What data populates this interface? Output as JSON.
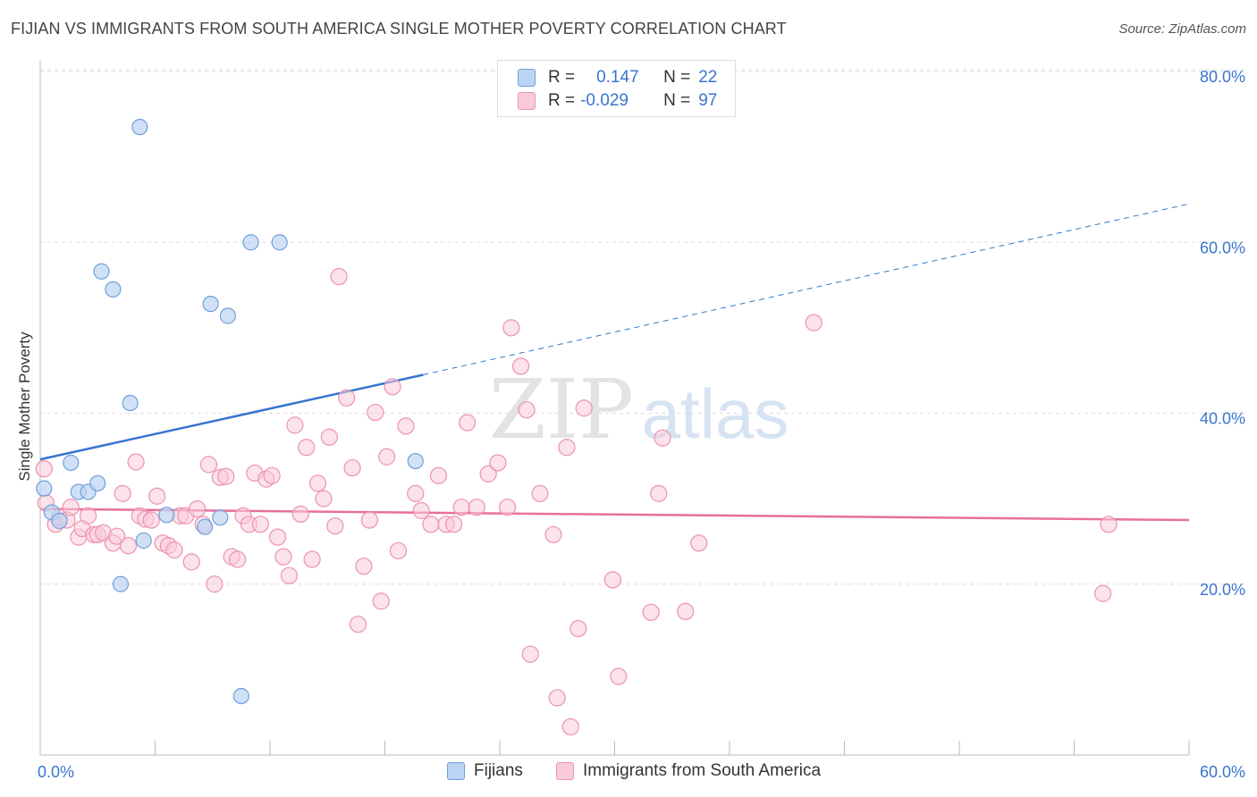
{
  "header": {
    "title": "FIJIAN VS IMMIGRANTS FROM SOUTH AMERICA SINGLE MOTHER POVERTY CORRELATION CHART",
    "source": "Source: ZipAtlas.com"
  },
  "legend_top": {
    "rows": [
      {
        "r_label": "R =",
        "r_value": "0.147",
        "n_label": "N =",
        "n_value": "22"
      },
      {
        "r_label": "R =",
        "r_value": "-0.029",
        "n_label": "N =",
        "n_value": "97"
      }
    ]
  },
  "watermark": {
    "part1": "ZIP",
    "part2": "atlas"
  },
  "colors": {
    "fijian_fill": "#bcd4f4",
    "fijian_stroke": "#6f9fd8",
    "fijian_line": "#3574d0",
    "sa_fill": "#f9cad8",
    "sa_stroke": "#eb93ae",
    "sa_line": "#e8709a",
    "grid": "#dddddd",
    "axis_text": "#3b74d0"
  },
  "chart_data": {
    "type": "scatter",
    "title": "FIJIAN VS IMMIGRANTS FROM SOUTH AMERICA SINGLE MOTHER POVERTY CORRELATION CHART",
    "xlabel": "",
    "ylabel": "Single Mother Poverty",
    "xlim": [
      0,
      60
    ],
    "ylim": [
      0,
      80
    ],
    "x_tick_labels": [
      "0.0%",
      "60.0%"
    ],
    "y_ticks": [
      20,
      40,
      60,
      80
    ],
    "y_tick_labels": [
      "20.0%",
      "40.0%",
      "60.0%",
      "80.0%"
    ],
    "grid": true,
    "series": [
      {
        "name": "Fijians",
        "r": 0.147,
        "n": 22,
        "trend": {
          "x0": 0,
          "y0": 34.6,
          "x1": 20,
          "y1": 44.5,
          "dashed_to_x": 60,
          "dashed_to_y": 64.5
        },
        "points": [
          [
            0.2,
            31.2
          ],
          [
            0.6,
            28.4
          ],
          [
            1.0,
            27.4
          ],
          [
            1.6,
            34.2
          ],
          [
            2.0,
            30.8
          ],
          [
            2.5,
            30.8
          ],
          [
            3.0,
            31.8
          ],
          [
            3.2,
            56.6
          ],
          [
            3.8,
            54.5
          ],
          [
            4.2,
            20.0
          ],
          [
            4.7,
            41.2
          ],
          [
            5.2,
            73.5
          ],
          [
            5.4,
            25.1
          ],
          [
            6.6,
            28.1
          ],
          [
            8.6,
            26.7
          ],
          [
            8.9,
            52.8
          ],
          [
            9.4,
            27.8
          ],
          [
            9.8,
            51.4
          ],
          [
            10.5,
            6.9
          ],
          [
            11.0,
            60.0
          ],
          [
            12.5,
            60.0
          ],
          [
            19.6,
            34.4
          ]
        ]
      },
      {
        "name": "Immigrants from South America",
        "r": -0.029,
        "n": 97,
        "trend": {
          "x0": 0,
          "y0": 28.8,
          "x1": 60,
          "y1": 27.5
        },
        "points": [
          [
            0.2,
            33.5
          ],
          [
            0.3,
            29.5
          ],
          [
            0.8,
            27.0
          ],
          [
            1.0,
            27.8
          ],
          [
            1.4,
            27.5
          ],
          [
            1.6,
            29.0
          ],
          [
            2.0,
            25.5
          ],
          [
            2.2,
            26.5
          ],
          [
            2.5,
            28.0
          ],
          [
            2.8,
            25.8
          ],
          [
            3.0,
            25.8
          ],
          [
            3.3,
            26.0
          ],
          [
            3.8,
            24.8
          ],
          [
            4.0,
            25.6
          ],
          [
            4.3,
            30.6
          ],
          [
            4.6,
            24.5
          ],
          [
            5.0,
            34.3
          ],
          [
            5.2,
            28.0
          ],
          [
            5.5,
            27.6
          ],
          [
            5.8,
            27.5
          ],
          [
            6.1,
            30.3
          ],
          [
            6.4,
            24.8
          ],
          [
            6.7,
            24.5
          ],
          [
            7.0,
            24.0
          ],
          [
            7.3,
            28.0
          ],
          [
            7.6,
            28.0
          ],
          [
            7.9,
            22.6
          ],
          [
            8.2,
            28.8
          ],
          [
            8.5,
            27.0
          ],
          [
            8.8,
            34.0
          ],
          [
            9.1,
            20.0
          ],
          [
            9.4,
            32.5
          ],
          [
            9.7,
            32.6
          ],
          [
            10.0,
            23.2
          ],
          [
            10.3,
            22.9
          ],
          [
            10.6,
            28.0
          ],
          [
            10.9,
            27.0
          ],
          [
            11.2,
            33.0
          ],
          [
            11.5,
            27.0
          ],
          [
            11.8,
            32.3
          ],
          [
            12.1,
            32.7
          ],
          [
            12.4,
            25.5
          ],
          [
            12.7,
            23.2
          ],
          [
            13.0,
            21.0
          ],
          [
            13.3,
            38.6
          ],
          [
            13.6,
            28.2
          ],
          [
            13.9,
            36.0
          ],
          [
            14.2,
            22.9
          ],
          [
            14.5,
            31.8
          ],
          [
            14.8,
            30.0
          ],
          [
            15.1,
            37.2
          ],
          [
            15.4,
            26.8
          ],
          [
            16.0,
            41.8
          ],
          [
            16.3,
            33.6
          ],
          [
            16.6,
            15.3
          ],
          [
            16.9,
            22.1
          ],
          [
            17.2,
            27.5
          ],
          [
            17.5,
            40.1
          ],
          [
            17.8,
            18.0
          ],
          [
            18.1,
            34.9
          ],
          [
            18.4,
            43.1
          ],
          [
            18.7,
            23.9
          ],
          [
            19.1,
            38.5
          ],
          [
            19.6,
            30.6
          ],
          [
            19.9,
            28.6
          ],
          [
            20.4,
            27.0
          ],
          [
            20.8,
            32.7
          ],
          [
            21.2,
            27.0
          ],
          [
            21.6,
            27.0
          ],
          [
            22.0,
            29.0
          ],
          [
            22.3,
            38.9
          ],
          [
            22.8,
            29.0
          ],
          [
            23.4,
            32.9
          ],
          [
            23.9,
            34.2
          ],
          [
            24.4,
            29.0
          ],
          [
            24.6,
            50.0
          ],
          [
            25.1,
            45.5
          ],
          [
            25.4,
            40.4
          ],
          [
            25.6,
            11.8
          ],
          [
            26.1,
            30.6
          ],
          [
            26.8,
            25.8
          ],
          [
            27.0,
            6.7
          ],
          [
            27.5,
            36.0
          ],
          [
            27.7,
            3.3
          ],
          [
            28.1,
            14.8
          ],
          [
            28.4,
            40.6
          ],
          [
            29.9,
            20.5
          ],
          [
            30.2,
            9.2
          ],
          [
            31.9,
            16.7
          ],
          [
            32.3,
            30.6
          ],
          [
            32.5,
            37.1
          ],
          [
            33.7,
            16.8
          ],
          [
            34.4,
            24.8
          ],
          [
            15.6,
            56.0
          ],
          [
            40.4,
            50.6
          ],
          [
            55.5,
            18.9
          ],
          [
            55.8,
            27.0
          ]
        ]
      }
    ]
  },
  "bottom_legend": {
    "items": [
      {
        "label": "Fijians"
      },
      {
        "label": "Immigrants from South America"
      }
    ]
  }
}
